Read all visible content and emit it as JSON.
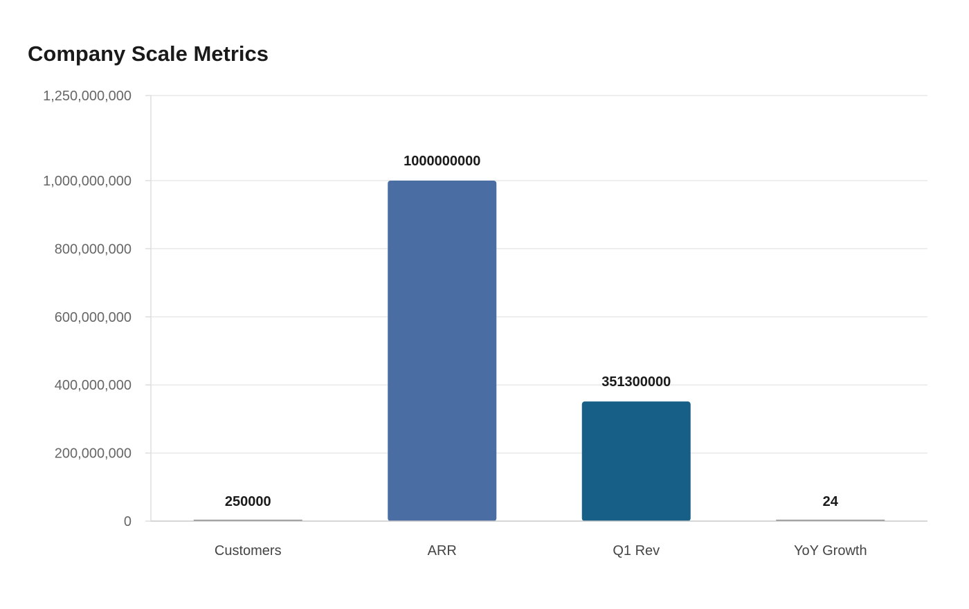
{
  "chart_data": {
    "type": "bar",
    "title": "Company Scale Metrics",
    "xlabel": "",
    "ylabel": "",
    "categories": [
      "Customers",
      "ARR",
      "Q1 Rev",
      "YoY Growth"
    ],
    "values": [
      250000,
      1000000000,
      351300000,
      24
    ],
    "value_labels": [
      "250000",
      "1000000000",
      "351300000",
      "24"
    ],
    "ylim": [
      0,
      1250000000
    ],
    "yticks": [
      0,
      200000000,
      400000000,
      600000000,
      800000000,
      1000000000,
      1250000000
    ],
    "ytick_labels": [
      "0",
      "200,000,000",
      "400,000,000",
      "600,000,000",
      "800,000,000",
      "1,000,000,000",
      "1,250,000,000"
    ],
    "bar_colors": [
      "#888888",
      "#4a6ea3",
      "#185f87",
      "#888888"
    ],
    "grid": true,
    "legend": "none"
  }
}
